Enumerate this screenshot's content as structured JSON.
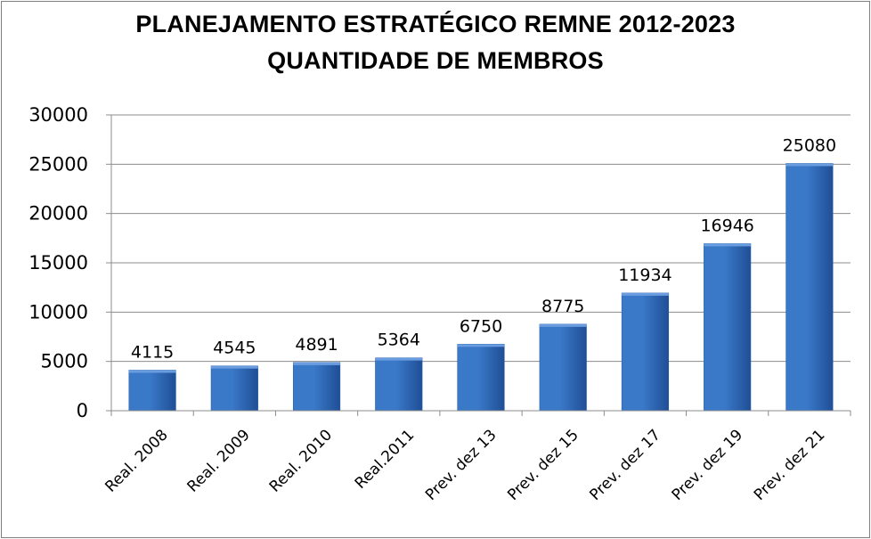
{
  "chart_data": {
    "type": "bar",
    "title": "PLANEJAMENTO ESTRATÉGICO REMNE 2012-2023",
    "subtitle": "QUANTIDADE DE MEMBROS",
    "xlabel": "",
    "ylabel": "",
    "categories": [
      "Real. 2008",
      "Real. 2009",
      "Real. 2010",
      "Real.2011",
      "Prev. dez 13",
      "Prev. dez 15",
      "Prev. dez 17",
      "Prev. dez 19",
      "Prev. dez 21"
    ],
    "values": [
      4115,
      4545,
      4891,
      5364,
      6750,
      8775,
      11934,
      16946,
      25080
    ],
    "ylim": [
      0,
      30000
    ],
    "yticks": [
      "0",
      "5000",
      "10000",
      "15000",
      "20000",
      "25000",
      "30000"
    ],
    "grid": true,
    "legend": "none",
    "bar_color": "#3a78c8",
    "bar_color_dark": "#1f4f96"
  }
}
